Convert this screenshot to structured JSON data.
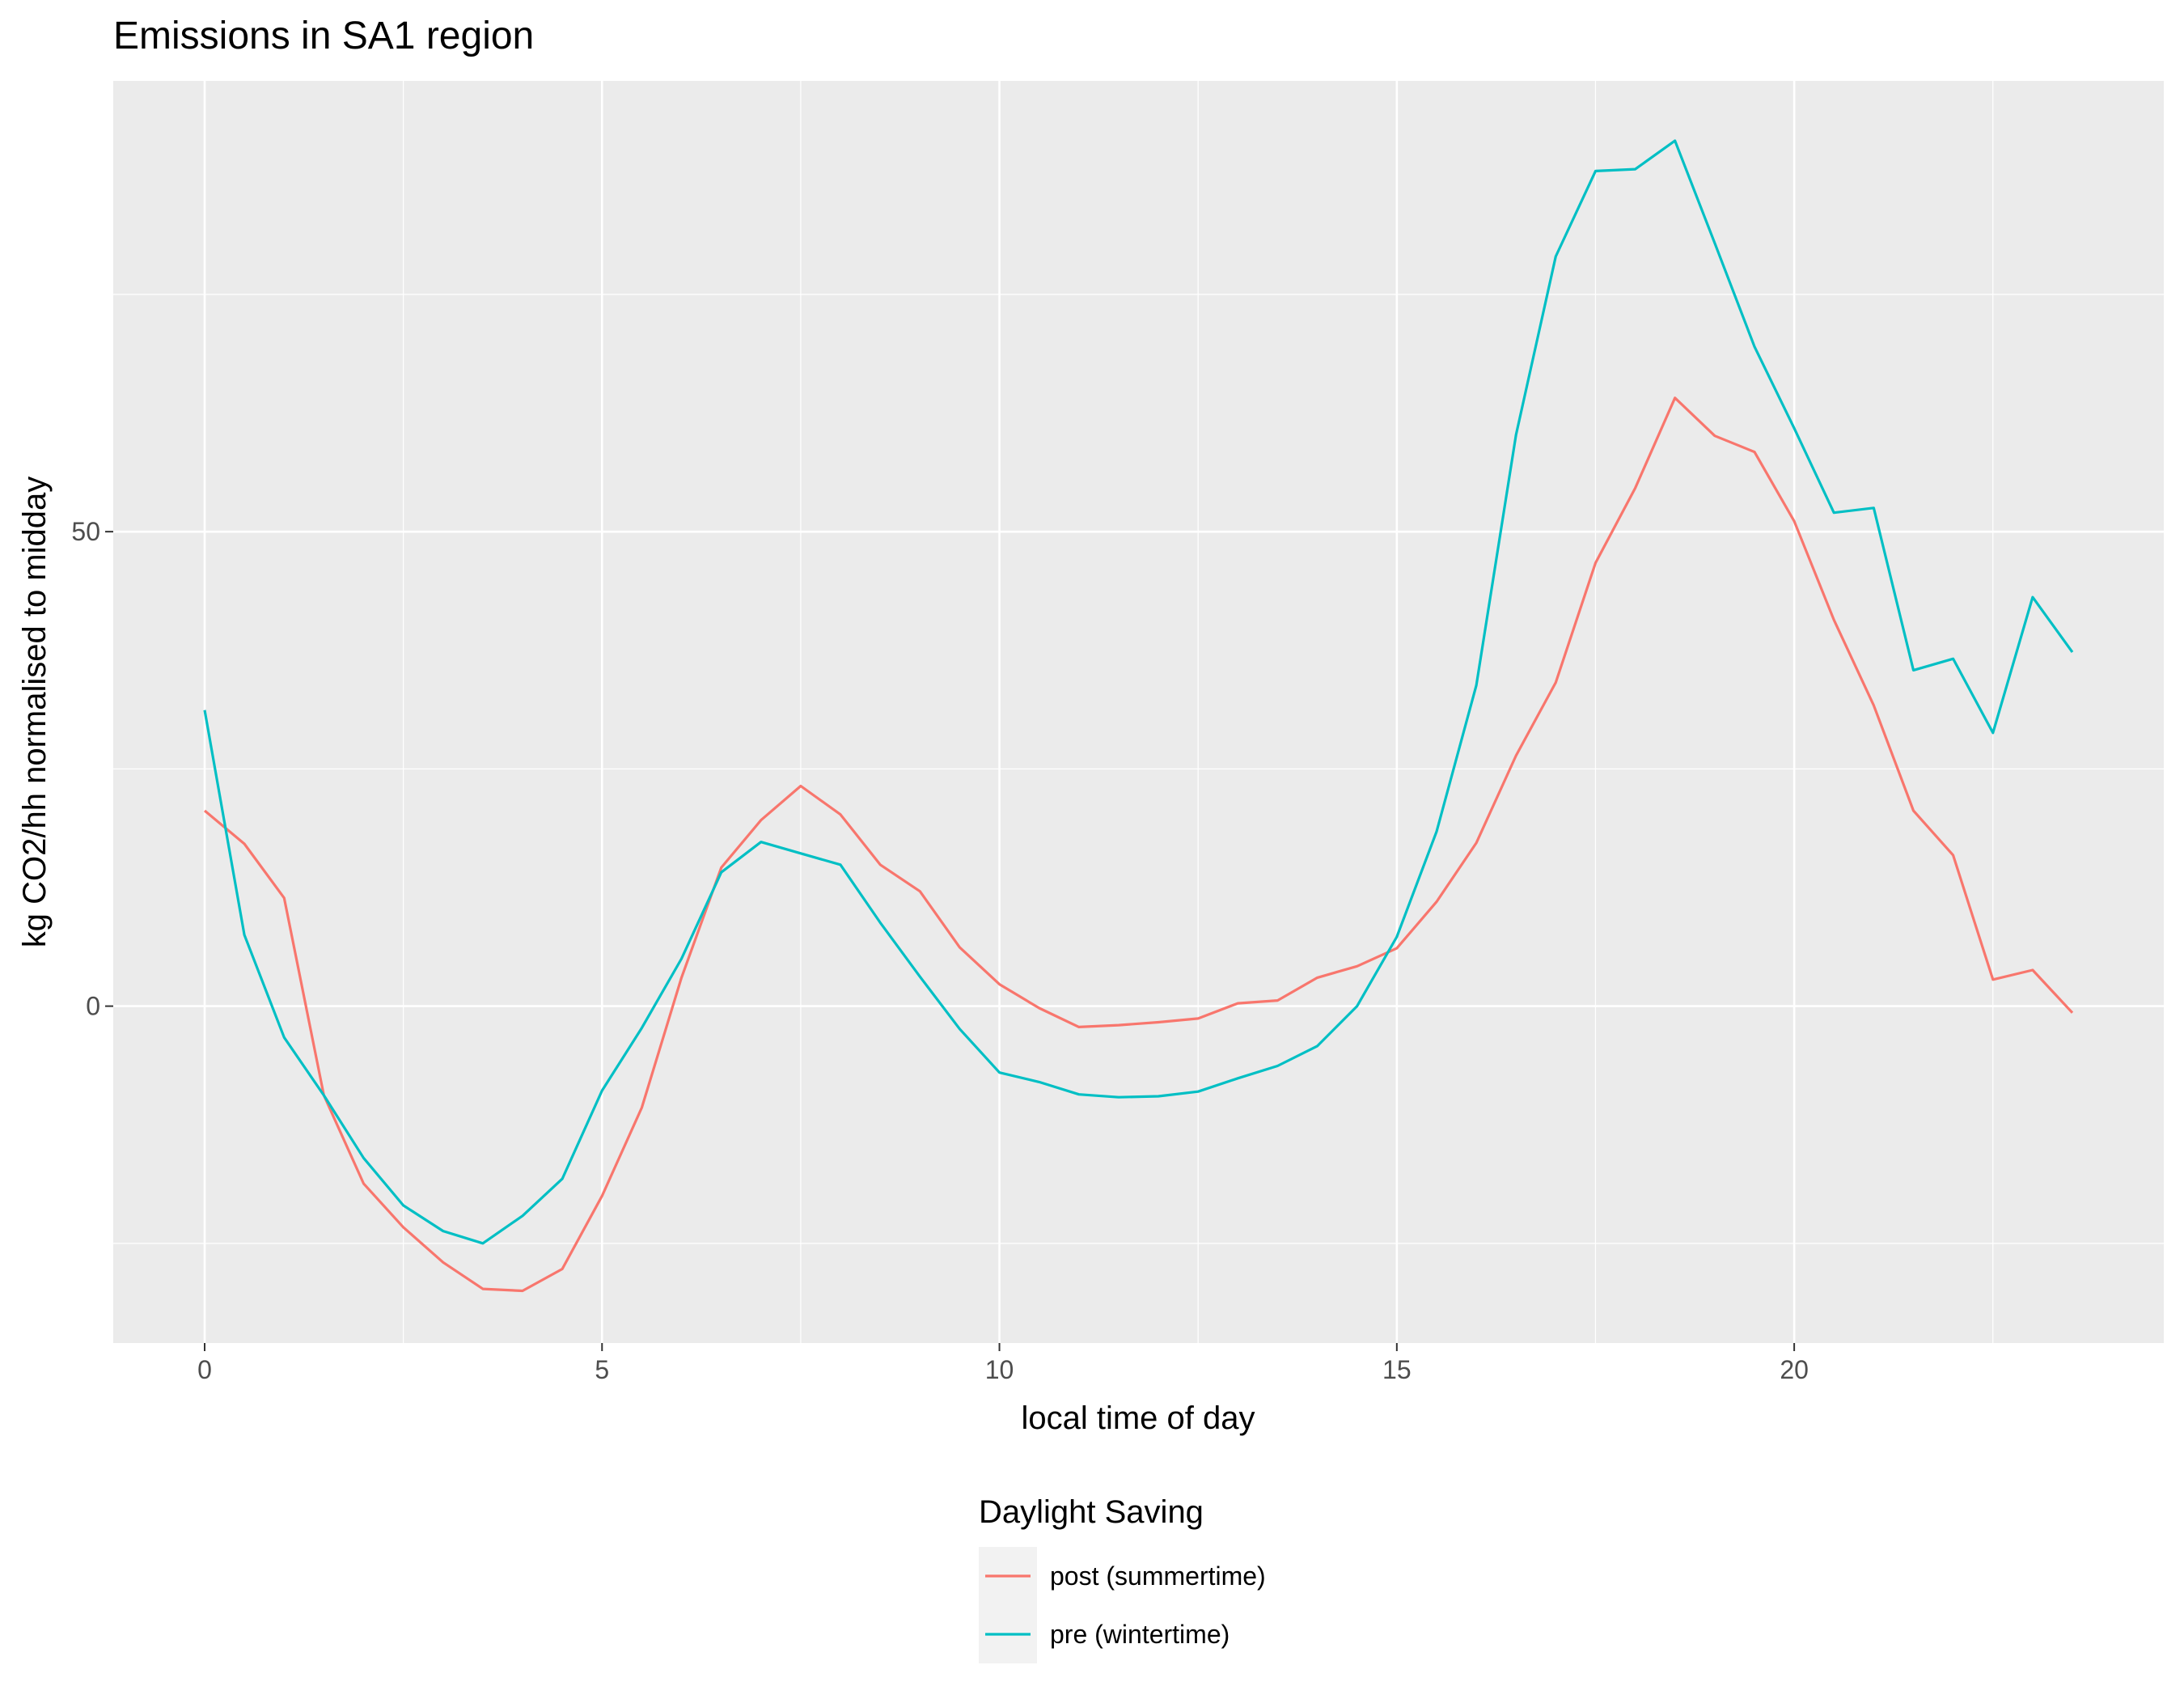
{
  "chart_data": {
    "type": "line",
    "title": "Emissions in SA1 region",
    "xlabel": "local time of day",
    "ylabel": "kg CO2/hh normalised to midday",
    "xlim": [
      -1.15,
      24.65
    ],
    "ylim": [
      -35.5,
      97.5
    ],
    "x_ticks": [
      0,
      5,
      10,
      15,
      20
    ],
    "x_tick_labels": [
      "0",
      "5",
      "10",
      "15",
      "20"
    ],
    "y_ticks": [
      0,
      50
    ],
    "y_tick_labels": [
      "0",
      "50"
    ],
    "x_minor_ticks": [
      2.5,
      7.5,
      12.5,
      17.5,
      22.5
    ],
    "y_minor_ticks": [
      -25,
      25,
      75
    ],
    "grid": true,
    "legend": {
      "title": "Daylight Saving",
      "position": "bottom"
    },
    "x": [
      0,
      0.5,
      1,
      1.5,
      2,
      2.5,
      3,
      3.5,
      4,
      4.5,
      5,
      5.5,
      6,
      6.5,
      7,
      7.5,
      8,
      8.5,
      9,
      9.5,
      10,
      10.5,
      11,
      11.5,
      12,
      12.5,
      13,
      13.5,
      14,
      14.5,
      15,
      15.5,
      16,
      16.5,
      17,
      17.5,
      18,
      18.5,
      19,
      19.5,
      20,
      20.5,
      21,
      21.5,
      22,
      22.5,
      23,
      23.5
    ],
    "series": [
      {
        "name": "post (summertime)",
        "color": "#F8766D",
        "values": [
          20.6,
          17.1,
          11.4,
          -9.4,
          -18.7,
          -23.3,
          -27.0,
          -29.8,
          -30.0,
          -27.7,
          -20.0,
          -10.7,
          3.0,
          14.6,
          19.6,
          23.2,
          20.2,
          14.9,
          12.1,
          6.2,
          2.3,
          -0.2,
          -2.2,
          -2.0,
          -1.7,
          -1.3,
          0.3,
          0.6,
          3.0,
          4.2,
          6.1,
          11.0,
          17.2,
          26.4,
          34.1,
          46.7,
          54.6,
          64.1,
          60.1,
          58.4,
          51.1,
          40.7,
          31.7,
          20.6,
          15.9,
          2.8,
          3.8,
          -0.7
        ]
      },
      {
        "name": "pre (wintertime)",
        "color": "#00BFC4",
        "values": [
          31.2,
          7.5,
          -3.3,
          -9.4,
          -16.0,
          -21.0,
          -23.7,
          -25.0,
          -22.1,
          -18.2,
          -8.9,
          -2.3,
          5.0,
          14.1,
          17.3,
          16.1,
          14.9,
          8.8,
          3.1,
          -2.4,
          -7.0,
          -8.0,
          -9.3,
          -9.6,
          -9.5,
          -9.0,
          -7.6,
          -6.3,
          -4.2,
          0.0,
          7.3,
          18.4,
          33.8,
          60.2,
          79.0,
          88.0,
          88.2,
          91.2,
          80.4,
          69.5,
          60.9,
          52.0,
          52.5,
          35.4,
          36.6,
          28.8,
          43.1,
          37.3
        ]
      }
    ]
  }
}
